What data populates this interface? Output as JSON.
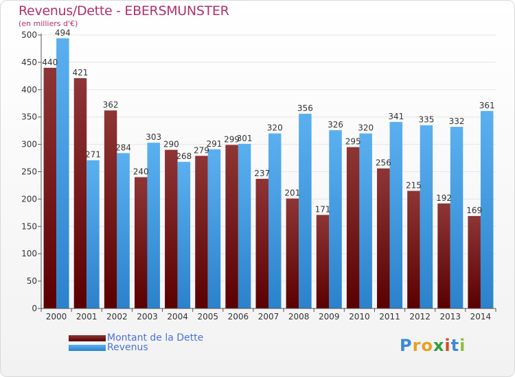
{
  "header": {
    "title": "Revenus/Dette - EBERSMUNSTER",
    "unit": "(en milliers d'€)"
  },
  "logo": {
    "text": "Proxiti",
    "letters": [
      {
        "ch": "P",
        "color": "#3a8ad8"
      },
      {
        "ch": "r",
        "color": "#e8a020"
      },
      {
        "ch": "o",
        "color": "#e8a020"
      },
      {
        "ch": "x",
        "color": "#2e9e3a"
      },
      {
        "ch": "i",
        "color": "#d84a2a"
      },
      {
        "ch": "t",
        "color": "#3a8ad8"
      },
      {
        "ch": "i",
        "color": "#8ac040"
      }
    ]
  },
  "colors": {
    "dette": "#7a1a1a",
    "revenus": "#3a98e0",
    "axis_text": "#333333",
    "grid": "#e6e6e6"
  },
  "chart_data": {
    "type": "bar",
    "title": "Revenus/Dette - EBERSMUNSTER",
    "ylabel": "(en milliers d'€)",
    "categories": [
      "2000",
      "2001",
      "2002",
      "2003",
      "2004",
      "2005",
      "2006",
      "2007",
      "2008",
      "2009",
      "2010",
      "2011",
      "2012",
      "2013",
      "2014"
    ],
    "ylim": [
      0,
      500
    ],
    "yticks": [
      0,
      50,
      100,
      150,
      200,
      250,
      300,
      350,
      400,
      450,
      500
    ],
    "grid": true,
    "legend_position": "bottom-left",
    "series": [
      {
        "name": "Montant de la Dette",
        "color": "#7a1a1a",
        "values": [
          440,
          421,
          362,
          240,
          290,
          279,
          299,
          237,
          201,
          171,
          295,
          256,
          215,
          192,
          169
        ]
      },
      {
        "name": "Revenus",
        "color": "#3a98e0",
        "values": [
          494,
          271,
          284,
          303,
          268,
          291,
          301,
          320,
          356,
          326,
          320,
          341,
          335,
          332,
          361
        ]
      }
    ]
  }
}
